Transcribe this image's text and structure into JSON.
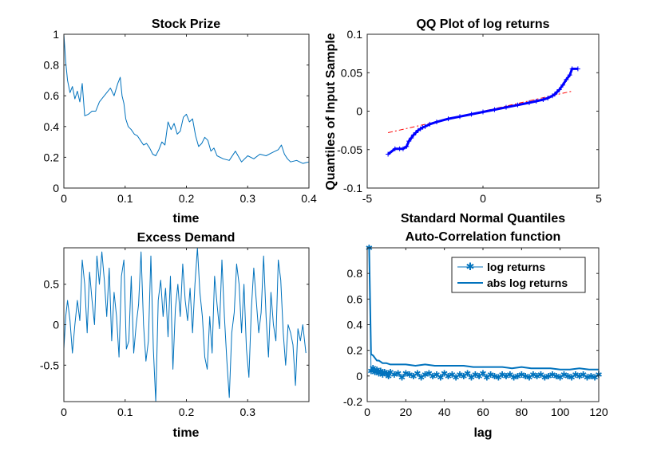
{
  "colors": {
    "series": "#0072BD",
    "qq_points": "#0000FF",
    "qq_ref": "#FF0000",
    "axis": "#262626"
  },
  "chart_data": [
    {
      "id": "price",
      "type": "line",
      "title": "Stock Prize",
      "xlabel": "time",
      "ylabel": "",
      "xlim": [
        0,
        0.4
      ],
      "ylim": [
        0,
        1
      ],
      "xticks": [
        0,
        0.1,
        0.2,
        0.3,
        0.4
      ],
      "xtick_labels": [
        "0",
        "0.1",
        "0.2",
        "0.3",
        "0.4"
      ],
      "yticks": [
        0,
        0.2,
        0.4,
        0.6,
        0.8,
        1
      ],
      "ytick_labels": [
        "0",
        "0.2",
        "0.4",
        "0.6",
        "0.8",
        "1"
      ],
      "series": [
        {
          "name": "price",
          "x": [
            0,
            0.003,
            0.006,
            0.01,
            0.014,
            0.018,
            0.022,
            0.026,
            0.03,
            0.034,
            0.04,
            0.046,
            0.052,
            0.058,
            0.064,
            0.07,
            0.076,
            0.082,
            0.088,
            0.092,
            0.095,
            0.098,
            0.101,
            0.105,
            0.11,
            0.115,
            0.12,
            0.125,
            0.13,
            0.135,
            0.14,
            0.145,
            0.15,
            0.155,
            0.16,
            0.165,
            0.17,
            0.175,
            0.18,
            0.185,
            0.19,
            0.195,
            0.2,
            0.205,
            0.21,
            0.215,
            0.22,
            0.225,
            0.23,
            0.235,
            0.24,
            0.245,
            0.25,
            0.26,
            0.27,
            0.28,
            0.29,
            0.3,
            0.31,
            0.32,
            0.33,
            0.34,
            0.35,
            0.355,
            0.36,
            0.365,
            0.37,
            0.38,
            0.39,
            0.4
          ],
          "y": [
            1.0,
            0.82,
            0.7,
            0.62,
            0.66,
            0.58,
            0.63,
            0.56,
            0.68,
            0.47,
            0.48,
            0.5,
            0.5,
            0.56,
            0.59,
            0.62,
            0.65,
            0.6,
            0.68,
            0.72,
            0.6,
            0.55,
            0.45,
            0.4,
            0.38,
            0.35,
            0.34,
            0.31,
            0.28,
            0.29,
            0.26,
            0.22,
            0.21,
            0.25,
            0.3,
            0.28,
            0.43,
            0.38,
            0.42,
            0.35,
            0.37,
            0.46,
            0.48,
            0.43,
            0.45,
            0.34,
            0.27,
            0.29,
            0.33,
            0.31,
            0.24,
            0.26,
            0.21,
            0.19,
            0.18,
            0.24,
            0.17,
            0.21,
            0.19,
            0.22,
            0.21,
            0.23,
            0.25,
            0.28,
            0.22,
            0.19,
            0.17,
            0.18,
            0.16,
            0.17
          ]
        }
      ]
    },
    {
      "id": "qq",
      "type": "scatter",
      "title": "QQ Plot of log returns",
      "xlabel": "Standard Normal Quantiles",
      "ylabel": "Quantiles of Input Sample",
      "xlim": [
        -5,
        5
      ],
      "ylim": [
        -0.1,
        0.1
      ],
      "xticks": [
        -5,
        0,
        5
      ],
      "xtick_labels": [
        "-5",
        "0",
        "5"
      ],
      "yticks": [
        -0.1,
        -0.05,
        0,
        0.05,
        0.1
      ],
      "ytick_labels": [
        "-0.1",
        "-0.05",
        "0",
        "0.05",
        "0.1"
      ],
      "marker": "+",
      "points": {
        "x": [
          -4.1,
          -3.8,
          -3.6,
          -3.45,
          -3.3,
          -3.2,
          -3.1,
          -3.0,
          -2.9,
          -2.8,
          -2.7,
          -2.6,
          -2.5,
          -2.3,
          -2.0,
          -1.5,
          -1.0,
          -0.5,
          0.0,
          0.5,
          1.0,
          1.5,
          2.0,
          2.3,
          2.6,
          2.8,
          3.0,
          3.1,
          3.2,
          3.3,
          3.45,
          3.6,
          3.75,
          3.85,
          4.1
        ],
        "y": [
          -0.056,
          -0.049,
          -0.049,
          -0.049,
          -0.046,
          -0.039,
          -0.035,
          -0.031,
          -0.028,
          -0.025,
          -0.023,
          -0.021,
          -0.02,
          -0.017,
          -0.014,
          -0.01,
          -0.007,
          -0.004,
          -0.001,
          0.002,
          0.005,
          0.008,
          0.011,
          0.013,
          0.015,
          0.017,
          0.02,
          0.022,
          0.025,
          0.028,
          0.034,
          0.041,
          0.047,
          0.055,
          0.055
        ]
      },
      "reference_line": {
        "x": [
          -4.1,
          3.85
        ],
        "y": [
          -0.028,
          0.026
        ],
        "style": "dash-dot"
      }
    },
    {
      "id": "excess",
      "type": "line",
      "title": "Excess Demand",
      "xlabel": "time",
      "ylabel": "",
      "xlim": [
        0,
        0.4
      ],
      "ylim": [
        -0.95,
        0.95
      ],
      "xticks": [
        0,
        0.1,
        0.2,
        0.3
      ],
      "xtick_labels": [
        "0",
        "0.1",
        "0.2",
        "0.3"
      ],
      "yticks": [
        -0.5,
        0,
        0.5
      ],
      "ytick_labels": [
        "-0.5",
        "0",
        "0.5"
      ],
      "series": [
        {
          "name": "excess demand",
          "x": [
            0,
            0.003,
            0.006,
            0.01,
            0.014,
            0.018,
            0.022,
            0.026,
            0.03,
            0.034,
            0.038,
            0.042,
            0.046,
            0.05,
            0.054,
            0.058,
            0.062,
            0.066,
            0.07,
            0.074,
            0.078,
            0.082,
            0.086,
            0.09,
            0.094,
            0.098,
            0.102,
            0.106,
            0.11,
            0.114,
            0.118,
            0.122,
            0.126,
            0.13,
            0.134,
            0.138,
            0.142,
            0.146,
            0.15,
            0.154,
            0.158,
            0.162,
            0.166,
            0.17,
            0.174,
            0.178,
            0.182,
            0.186,
            0.19,
            0.194,
            0.198,
            0.202,
            0.206,
            0.21,
            0.214,
            0.218,
            0.222,
            0.226,
            0.23,
            0.234,
            0.238,
            0.242,
            0.246,
            0.25,
            0.254,
            0.258,
            0.262,
            0.266,
            0.27,
            0.274,
            0.278,
            0.282,
            0.286,
            0.29,
            0.294,
            0.298,
            0.302,
            0.306,
            0.31,
            0.314,
            0.318,
            0.322,
            0.326,
            0.33,
            0.334,
            0.338,
            0.342,
            0.346,
            0.35,
            0.354,
            0.358,
            0.362,
            0.366,
            0.37,
            0.374,
            0.378,
            0.382,
            0.386,
            0.39,
            0.395
          ],
          "y": [
            -0.3,
            0.1,
            0.3,
            0.05,
            -0.35,
            0.0,
            0.3,
            0.05,
            0.8,
            0.5,
            -0.1,
            0.65,
            0.3,
            0.0,
            0.85,
            0.5,
            0.9,
            0.55,
            0.1,
            0.7,
            -0.2,
            0.4,
            0.1,
            -0.4,
            0.6,
            0.8,
            -0.3,
            -0.2,
            0.6,
            -0.35,
            0.0,
            0.25,
            0.9,
            0.0,
            -0.45,
            -0.2,
            0.85,
            -0.3,
            -0.95,
            0.3,
            0.55,
            0.1,
            0.45,
            -0.15,
            0.6,
            -0.55,
            0.2,
            0.5,
            0.1,
            0.75,
            0.3,
            0.05,
            0.45,
            -0.1,
            0.5,
            0.95,
            0.4,
            0.1,
            -0.4,
            -0.55,
            0.1,
            -0.35,
            0.6,
            0.25,
            -0.05,
            0.8,
            0.1,
            -0.45,
            -0.9,
            -0.1,
            0.15,
            0.75,
            0.5,
            -0.1,
            0.5,
            -0.3,
            -0.65,
            0.2,
            0.7,
            0.3,
            -0.1,
            0.15,
            0.85,
            0.1,
            -0.4,
            0.4,
            0.0,
            -0.2,
            0.8,
            0.55,
            -0.1,
            -0.5,
            0.0,
            -0.1,
            -0.25,
            -0.75,
            -0.05,
            -0.2,
            0.0,
            -0.35
          ]
        }
      ]
    },
    {
      "id": "acf",
      "type": "line",
      "title": "Auto-Correlation function",
      "xlabel": "lag",
      "ylabel": "",
      "xlim": [
        0,
        120
      ],
      "ylim": [
        -0.2,
        1.0
      ],
      "xticks": [
        0,
        20,
        40,
        60,
        80,
        100,
        120
      ],
      "xtick_labels": [
        "0",
        "20",
        "40",
        "60",
        "80",
        "100",
        "120"
      ],
      "yticks": [
        -0.2,
        0,
        0.2,
        0.4,
        0.6,
        0.8
      ],
      "ytick_labels": [
        "-0.2",
        "0",
        "0.2",
        "0.4",
        "0.6",
        "0.8"
      ],
      "legend": {
        "position": "top-right",
        "entries": [
          "log returns",
          "abs log returns"
        ]
      },
      "series": [
        {
          "name": "log returns",
          "marker": "*",
          "x": [
            1,
            2,
            3,
            4,
            5,
            6,
            7,
            8,
            9,
            10,
            11,
            12,
            14,
            16,
            18,
            20,
            22,
            24,
            26,
            28,
            30,
            32,
            34,
            36,
            38,
            40,
            42,
            44,
            46,
            48,
            50,
            52,
            54,
            56,
            58,
            60,
            62,
            64,
            66,
            68,
            70,
            72,
            74,
            76,
            78,
            80,
            82,
            84,
            86,
            88,
            90,
            92,
            94,
            96,
            98,
            100,
            102,
            104,
            106,
            108,
            110,
            112,
            114,
            116,
            118,
            120
          ],
          "y": [
            1.0,
            0.04,
            0.06,
            0.03,
            0.05,
            0.02,
            0.04,
            0.01,
            0.03,
            0.02,
            0.0,
            0.03,
            0.01,
            0.02,
            -0.01,
            0.02,
            0.01,
            0.0,
            0.02,
            -0.01,
            0.01,
            0.02,
            0.0,
            0.01,
            -0.01,
            0.02,
            0.0,
            0.01,
            -0.01,
            0.01,
            0.0,
            0.02,
            -0.01,
            0.01,
            0.0,
            0.02,
            -0.01,
            0.01,
            0.0,
            -0.01,
            0.01,
            0.0,
            0.01,
            -0.01,
            0.0,
            0.01,
            0.0,
            -0.01,
            0.01,
            0.0,
            0.01,
            -0.01,
            0.0,
            0.01,
            0.0,
            -0.01,
            0.01,
            0.0,
            -0.01,
            0.01,
            0.0,
            0.01,
            -0.01,
            0.0,
            -0.01,
            0.01
          ]
        },
        {
          "name": "abs log returns",
          "x": [
            1,
            2,
            3,
            4,
            5,
            6,
            7,
            8,
            10,
            12,
            15,
            20,
            25,
            30,
            35,
            40,
            45,
            50,
            55,
            60,
            65,
            70,
            75,
            80,
            85,
            90,
            95,
            100,
            105,
            110,
            115,
            120
          ],
          "y": [
            1.0,
            0.17,
            0.16,
            0.14,
            0.12,
            0.12,
            0.11,
            0.1,
            0.1,
            0.09,
            0.09,
            0.09,
            0.08,
            0.09,
            0.08,
            0.08,
            0.08,
            0.08,
            0.07,
            0.07,
            0.07,
            0.07,
            0.06,
            0.07,
            0.06,
            0.06,
            0.06,
            0.05,
            0.05,
            0.06,
            0.05,
            0.05
          ]
        }
      ]
    }
  ]
}
